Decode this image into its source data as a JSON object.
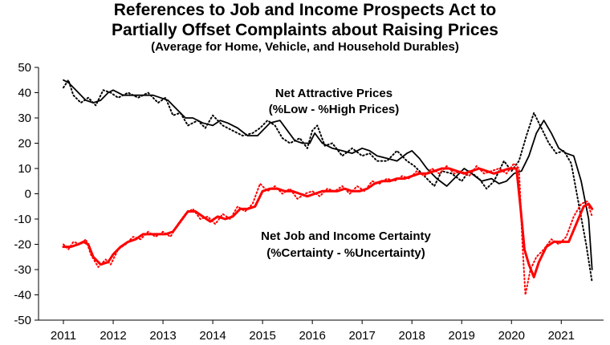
{
  "chart_data": {
    "type": "line",
    "title_line1": "References to Job and Income Prospects Act to",
    "title_line2": "Partially Offset Complaints about Raising Prices",
    "subtitle": "(Average for Home, Vehicle, and Household Durables)",
    "xlabel": "",
    "ylabel": "",
    "ylim": [
      -50,
      50
    ],
    "yticks": [
      50,
      40,
      30,
      20,
      10,
      0,
      -10,
      -20,
      -30,
      -40,
      -50
    ],
    "xlim": [
      2010.5,
      2021.85
    ],
    "xticks": [
      2011,
      2012,
      2013,
      2014,
      2015,
      2016,
      2017,
      2018,
      2019,
      2020,
      2021
    ],
    "grid": false,
    "legend": "none",
    "annotations": [
      {
        "line1": "Net Attractive Prices",
        "line2": "(%Low - %High Prices)"
      },
      {
        "line1": "Net Job and Income Certainty",
        "line2": "(%Certainty - %Uncertainty)"
      }
    ],
    "series": [
      {
        "key": "prices",
        "color": "#000000",
        "x": [
          2011.0,
          2011.1,
          2011.25,
          2011.45,
          2011.6,
          2011.75,
          2011.9,
          2012.0,
          2012.2,
          2012.4,
          2012.6,
          2012.8,
          2012.95,
          2013.1,
          2013.3,
          2013.45,
          2013.6,
          2013.8,
          2014.0,
          2014.15,
          2014.3,
          2014.5,
          2014.7,
          2014.9,
          2015.0,
          2015.15,
          2015.35,
          2015.5,
          2015.65,
          2015.8,
          2015.95,
          2016.05,
          2016.2,
          2016.4,
          2016.6,
          2016.8,
          2017.0,
          2017.15,
          2017.3,
          2017.5,
          2017.7,
          2017.9,
          2018.0,
          2018.15,
          2018.3,
          2018.5,
          2018.7,
          2018.9,
          2019.05,
          2019.2,
          2019.4,
          2019.6,
          2019.75,
          2019.9,
          2020.05,
          2020.2,
          2020.35,
          2020.5,
          2020.65,
          2020.8,
          2020.95,
          2021.1,
          2021.25,
          2021.4,
          2021.55,
          2021.62
        ],
        "values": [
          45,
          44,
          41,
          37,
          36,
          37,
          40,
          41,
          39,
          39,
          39,
          39,
          38,
          37,
          33,
          30,
          30,
          28,
          27,
          29,
          28,
          26,
          23,
          23,
          25,
          28,
          29,
          25,
          21,
          20,
          20,
          24,
          20,
          18,
          17,
          16,
          18,
          17,
          15,
          14,
          13,
          16,
          17,
          14,
          10,
          6,
          3,
          7,
          10,
          8,
          5,
          6,
          4,
          5,
          8,
          9,
          15,
          24,
          29,
          24,
          18,
          16,
          15,
          5,
          -10,
          -30
        ]
      },
      {
        "key": "prices_dotted",
        "color": "#000000",
        "dotted": true,
        "x": [
          2011.0,
          2011.1,
          2011.2,
          2011.35,
          2011.5,
          2011.65,
          2011.8,
          2011.95,
          2012.1,
          2012.3,
          2012.5,
          2012.7,
          2012.9,
          2013.05,
          2013.2,
          2013.35,
          2013.5,
          2013.7,
          2013.85,
          2014.0,
          2014.2,
          2014.4,
          2014.6,
          2014.8,
          2014.95,
          2015.1,
          2015.25,
          2015.4,
          2015.55,
          2015.75,
          2015.9,
          2016.0,
          2016.1,
          2016.25,
          2016.4,
          2016.6,
          2016.8,
          2017.0,
          2017.15,
          2017.3,
          2017.5,
          2017.7,
          2017.9,
          2018.05,
          2018.25,
          2018.45,
          2018.6,
          2018.8,
          2019.0,
          2019.15,
          2019.35,
          2019.5,
          2019.65,
          2019.85,
          2020.0,
          2020.15,
          2020.3,
          2020.45,
          2020.6,
          2020.75,
          2020.9,
          2021.05,
          2021.2,
          2021.35,
          2021.5,
          2021.62
        ],
        "values": [
          42,
          45,
          39,
          36,
          38,
          35,
          41,
          40,
          38,
          40,
          38,
          40,
          36,
          38,
          31,
          32,
          27,
          29,
          26,
          31,
          27,
          25,
          23,
          24,
          26,
          29,
          27,
          22,
          20,
          22,
          18,
          25,
          27,
          19,
          20,
          15,
          18,
          15,
          16,
          13,
          13,
          17,
          13,
          11,
          7,
          3,
          9,
          8,
          5,
          9,
          6,
          2,
          5,
          13,
          9,
          13,
          23,
          32,
          26,
          20,
          16,
          17,
          12,
          -4,
          -20,
          -35
        ]
      },
      {
        "key": "certainty",
        "color": "#ff0000",
        "x": [
          2011.0,
          2011.15,
          2011.3,
          2011.4,
          2011.5,
          2011.6,
          2011.75,
          2011.9,
          2012.0,
          2012.15,
          2012.3,
          2012.45,
          2012.6,
          2012.75,
          2012.9,
          2013.05,
          2013.2,
          2013.35,
          2013.5,
          2013.65,
          2013.8,
          2013.95,
          2014.1,
          2014.25,
          2014.4,
          2014.55,
          2014.7,
          2014.85,
          2015.0,
          2015.15,
          2015.3,
          2015.45,
          2015.6,
          2015.75,
          2015.9,
          2016.05,
          2016.2,
          2016.35,
          2016.5,
          2016.65,
          2016.8,
          2016.95,
          2017.1,
          2017.25,
          2017.4,
          2017.55,
          2017.7,
          2017.85,
          2018.0,
          2018.15,
          2018.3,
          2018.45,
          2018.6,
          2018.75,
          2018.9,
          2019.05,
          2019.2,
          2019.35,
          2019.5,
          2019.65,
          2019.8,
          2019.95,
          2020.1,
          2020.18,
          2020.26,
          2020.35,
          2020.45,
          2020.55,
          2020.7,
          2020.85,
          2021.0,
          2021.15,
          2021.3,
          2021.45,
          2021.55,
          2021.62
        ],
        "values": [
          -21,
          -21,
          -20,
          -19,
          -20,
          -25,
          -28,
          -27,
          -24,
          -21,
          -19,
          -18,
          -16,
          -16,
          -16,
          -16,
          -15,
          -11,
          -7,
          -7,
          -9,
          -11,
          -9,
          -10,
          -9,
          -6,
          -6,
          -5,
          1,
          2,
          2,
          1,
          1,
          0,
          -1,
          0,
          1,
          1,
          1,
          2,
          1,
          1,
          2,
          4,
          5,
          5,
          6,
          6,
          7,
          8,
          8,
          9,
          10,
          10,
          9,
          8,
          9,
          10,
          9,
          8,
          9,
          10,
          10,
          -5,
          -22,
          -28,
          -33,
          -27,
          -21,
          -19,
          -19,
          -19,
          -12,
          -5,
          -4,
          -6
        ]
      },
      {
        "key": "certainty_dotted",
        "color": "#ff0000",
        "dotted": true,
        "x": [
          2011.0,
          2011.1,
          2011.2,
          2011.35,
          2011.45,
          2011.55,
          2011.7,
          2011.85,
          2011.95,
          2012.1,
          2012.25,
          2012.4,
          2012.55,
          2012.7,
          2012.85,
          2013.0,
          2013.15,
          2013.3,
          2013.45,
          2013.6,
          2013.75,
          2013.9,
          2014.05,
          2014.2,
          2014.35,
          2014.5,
          2014.65,
          2014.8,
          2014.95,
          2015.1,
          2015.25,
          2015.4,
          2015.55,
          2015.7,
          2015.85,
          2016.0,
          2016.15,
          2016.3,
          2016.45,
          2016.6,
          2016.75,
          2016.9,
          2017.05,
          2017.2,
          2017.35,
          2017.5,
          2017.65,
          2017.8,
          2017.95,
          2018.1,
          2018.25,
          2018.4,
          2018.55,
          2018.7,
          2018.85,
          2019.0,
          2019.15,
          2019.3,
          2019.45,
          2019.6,
          2019.75,
          2019.9,
          2020.05,
          2020.15,
          2020.22,
          2020.28,
          2020.38,
          2020.5,
          2020.65,
          2020.8,
          2020.95,
          2021.1,
          2021.25,
          2021.4,
          2021.52,
          2021.62
        ],
        "values": [
          -20,
          -22,
          -19,
          -20,
          -18,
          -24,
          -29,
          -26,
          -28,
          -22,
          -20,
          -17,
          -18,
          -15,
          -17,
          -15,
          -17,
          -12,
          -8,
          -6,
          -10,
          -9,
          -12,
          -8,
          -10,
          -5,
          -7,
          -4,
          4,
          1,
          3,
          0,
          2,
          -2,
          0,
          1,
          -1,
          2,
          1,
          3,
          0,
          3,
          1,
          5,
          4,
          6,
          5,
          7,
          6,
          9,
          7,
          10,
          8,
          11,
          8,
          9,
          7,
          11,
          8,
          9,
          10,
          8,
          12,
          10,
          -20,
          -40,
          -30,
          -25,
          -22,
          -18,
          -20,
          -17,
          -9,
          -4,
          -3,
          -9
        ]
      }
    ]
  }
}
